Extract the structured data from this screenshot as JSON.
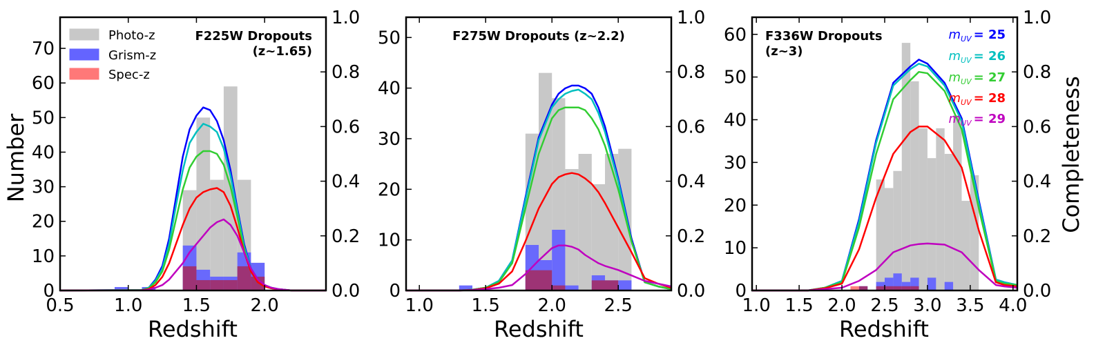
{
  "figure": {
    "left_ylabel": "Number",
    "right_ylabel": "Completeness",
    "xlabel": "Redshift"
  },
  "legend": {
    "entries": [
      {
        "label": "Photo-z",
        "color": "#c8c8c8"
      },
      {
        "label": "Grism-z",
        "color": "#6464ff"
      },
      {
        "label": "Spec-z",
        "color": "#ff7878"
      }
    ]
  },
  "mag_legend": {
    "entries": [
      {
        "var": "m",
        "sub": "UV",
        "value": "= 25",
        "color": "#0000ff"
      },
      {
        "var": "m",
        "sub": "UV",
        "value": "= 26",
        "color": "#00bfbf"
      },
      {
        "var": "m",
        "sub": "UV",
        "value": "= 27",
        "color": "#32cd32"
      },
      {
        "var": "m",
        "sub": "UV",
        "value": "= 28",
        "color": "#ff0000"
      },
      {
        "var": "m",
        "sub": "UV",
        "value": "= 29",
        "color": "#bf00bf"
      }
    ]
  },
  "colors": {
    "photo": "#c8c8c8",
    "grism": "#6464ff",
    "spec": "#ff7878",
    "overlap": "#a0306e"
  },
  "chart_data": [
    {
      "type": "bar",
      "title_lines": [
        "F225W Dropouts",
        "(z~1.65)"
      ],
      "title_align": "right",
      "xlabel": "Redshift",
      "ylabel": "Number",
      "y2label": "",
      "xlim": [
        0.5,
        2.45
      ],
      "ylim": [
        0,
        79
      ],
      "y2lim": [
        0,
        1.0
      ],
      "xticks": [
        "0.5",
        "1.0",
        "1.5",
        "2.0"
      ],
      "xtick_values": [
        0.5,
        1.0,
        1.5,
        2.0
      ],
      "yticks": [
        "0",
        "10",
        "20",
        "30",
        "40",
        "50",
        "60",
        "70"
      ],
      "ytick_values": [
        0,
        10,
        20,
        30,
        40,
        50,
        60,
        70
      ],
      "y2ticks": [
        "0.0",
        "0.2",
        "0.4",
        "0.6",
        "0.8",
        "1.0"
      ],
      "y2tick_values": [
        0,
        0.2,
        0.4,
        0.6,
        0.8,
        1.0
      ],
      "bin_width": 0.1,
      "photo_z": {
        "bin_starts": [
          1.4,
          1.5,
          1.6,
          1.7,
          1.8,
          1.9
        ],
        "counts": [
          29,
          50,
          32,
          59,
          32,
          8
        ]
      },
      "grism_z": {
        "bin_starts": [
          0.9,
          1.1,
          1.4,
          1.5,
          1.6,
          1.7,
          1.8,
          1.9
        ],
        "counts": [
          1,
          1,
          13,
          6,
          4,
          4,
          11,
          8
        ]
      },
      "spec_z": {
        "bin_starts": [
          1.4,
          1.5,
          1.6,
          1.7,
          1.8,
          1.9
        ],
        "counts": [
          7,
          3,
          3,
          3,
          7,
          4
        ]
      },
      "completeness": {
        "x": [
          0.5,
          1.1,
          1.15,
          1.2,
          1.25,
          1.3,
          1.35,
          1.4,
          1.45,
          1.5,
          1.55,
          1.6,
          1.65,
          1.7,
          1.75,
          1.8,
          1.85,
          1.9,
          1.95,
          2.0,
          2.05,
          2.1,
          2.2,
          2.45
        ],
        "series": [
          {
            "name": "m_UV = 25",
            "color": "#0000ff",
            "values": [
              0,
              0.002,
              0.01,
              0.04,
              0.09,
              0.19,
              0.34,
              0.49,
              0.59,
              0.64,
              0.67,
              0.66,
              0.62,
              0.55,
              0.44,
              0.3,
              0.17,
              0.08,
              0.04,
              0.02,
              0.01,
              0.005,
              0,
              0
            ]
          },
          {
            "name": "m_UV = 26",
            "color": "#00bfbf",
            "values": [
              0,
              0.002,
              0.01,
              0.035,
              0.08,
              0.17,
              0.31,
              0.44,
              0.54,
              0.58,
              0.61,
              0.6,
              0.58,
              0.52,
              0.42,
              0.29,
              0.16,
              0.08,
              0.04,
              0.02,
              0.01,
              0.005,
              0,
              0
            ]
          },
          {
            "name": "m_UV = 27",
            "color": "#32cd32",
            "values": [
              0,
              0.002,
              0.008,
              0.03,
              0.07,
              0.15,
              0.26,
              0.37,
              0.45,
              0.49,
              0.51,
              0.51,
              0.5,
              0.46,
              0.38,
              0.27,
              0.15,
              0.07,
              0.03,
              0.015,
              0.008,
              0.004,
              0,
              0
            ]
          },
          {
            "name": "m_UV = 28",
            "color": "#ff0000",
            "values": [
              0,
              0.001,
              0.005,
              0.02,
              0.05,
              0.1,
              0.17,
              0.24,
              0.3,
              0.34,
              0.36,
              0.37,
              0.375,
              0.36,
              0.31,
              0.23,
              0.14,
              0.07,
              0.03,
              0.015,
              0.008,
              0.004,
              0,
              0
            ]
          },
          {
            "name": "m_UV = 29",
            "color": "#bf00bf",
            "values": [
              0,
              0.001,
              0.003,
              0.01,
              0.02,
              0.04,
              0.07,
              0.1,
              0.14,
              0.17,
              0.2,
              0.23,
              0.25,
              0.26,
              0.24,
              0.2,
              0.14,
              0.08,
              0.04,
              0.02,
              0.01,
              0.005,
              0,
              0
            ]
          }
        ]
      }
    },
    {
      "type": "bar",
      "title_lines": [
        "F275W Dropouts (z~2.2)"
      ],
      "title_align": "center",
      "xlabel": "Redshift",
      "ylabel": "",
      "y2label": "",
      "xlim": [
        0.9,
        2.9
      ],
      "ylim": [
        0,
        54
      ],
      "y2lim": [
        0,
        1.0
      ],
      "xticks": [
        "1.0",
        "1.5",
        "2.0",
        "2.5"
      ],
      "xtick_values": [
        1.0,
        1.5,
        2.0,
        2.5
      ],
      "yticks": [
        "0",
        "10",
        "20",
        "30",
        "40",
        "50"
      ],
      "ytick_values": [
        0,
        10,
        20,
        30,
        40,
        50
      ],
      "y2ticks": [
        "0.0",
        "0.2",
        "0.4",
        "0.6",
        "0.8",
        "1.0"
      ],
      "y2tick_values": [
        0,
        0.2,
        0.4,
        0.6,
        0.8,
        1.0
      ],
      "bin_width": 0.1,
      "photo_z": {
        "bin_starts": [
          1.8,
          1.9,
          2.0,
          2.1,
          2.2,
          2.3,
          2.4,
          2.5
        ],
        "counts": [
          31,
          43,
          38,
          24,
          27,
          21,
          27,
          28
        ]
      },
      "grism_z": {
        "bin_starts": [
          1.3,
          1.8,
          1.9,
          2.0,
          2.1,
          2.3,
          2.4,
          2.5
        ],
        "counts": [
          1,
          9,
          6,
          12,
          1,
          3,
          2,
          2
        ]
      },
      "spec_z": {
        "bin_starts": [
          1.8,
          1.9,
          2.0,
          2.3,
          2.4
        ],
        "counts": [
          4,
          4,
          1,
          2,
          2
        ]
      },
      "completeness": {
        "x": [
          0.9,
          1.3,
          1.4,
          1.5,
          1.6,
          1.7,
          1.8,
          1.9,
          2.0,
          2.05,
          2.1,
          2.15,
          2.2,
          2.25,
          2.3,
          2.35,
          2.4,
          2.5,
          2.6,
          2.7,
          2.8,
          2.9
        ],
        "series": [
          {
            "name": "m_UV = 25",
            "color": "#0000ff",
            "values": [
              0,
              0,
              0.003,
              0.01,
              0.035,
              0.11,
              0.34,
              0.56,
              0.68,
              0.72,
              0.74,
              0.75,
              0.75,
              0.74,
              0.72,
              0.67,
              0.6,
              0.41,
              0.19,
              0.03,
              0.015,
              0.005
            ]
          },
          {
            "name": "m_UV = 26",
            "color": "#00bfbf",
            "values": [
              0,
              0,
              0.003,
              0.01,
              0.035,
              0.11,
              0.33,
              0.55,
              0.67,
              0.7,
              0.72,
              0.73,
              0.735,
              0.72,
              0.7,
              0.65,
              0.58,
              0.4,
              0.18,
              0.03,
              0.015,
              0.005
            ]
          },
          {
            "name": "m_UV = 27",
            "color": "#32cd32",
            "values": [
              0,
              0,
              0.003,
              0.01,
              0.03,
              0.1,
              0.3,
              0.5,
              0.63,
              0.66,
              0.67,
              0.67,
              0.67,
              0.66,
              0.63,
              0.59,
              0.53,
              0.37,
              0.18,
              0.03,
              0.015,
              0.005
            ]
          },
          {
            "name": "m_UV = 28",
            "color": "#ff0000",
            "values": [
              0,
              0,
              0.002,
              0.008,
              0.025,
              0.07,
              0.18,
              0.3,
              0.39,
              0.415,
              0.425,
              0.43,
              0.425,
              0.41,
              0.39,
              0.36,
              0.32,
              0.23,
              0.14,
              0.045,
              0.025,
              0.01
            ]
          },
          {
            "name": "m_UV = 29",
            "color": "#bf00bf",
            "values": [
              0,
              0,
              0.002,
              0.005,
              0.01,
              0.02,
              0.06,
              0.11,
              0.155,
              0.165,
              0.165,
              0.16,
              0.15,
              0.13,
              0.115,
              0.1,
              0.09,
              0.075,
              0.055,
              0.035,
              0.025,
              0.015
            ]
          }
        ]
      }
    },
    {
      "type": "bar",
      "title_lines": [
        "F336W Dropouts",
        "(z~3)"
      ],
      "title_align": "left",
      "xlabel": "Redshift",
      "ylabel": "",
      "y2label": "Completeness",
      "xlim": [
        0.95,
        4.05
      ],
      "ylim": [
        0,
        64
      ],
      "y2lim": [
        0,
        1.0
      ],
      "xticks": [
        "1.0",
        "1.5",
        "2.0",
        "2.5",
        "3.0",
        "3.5",
        "4.0"
      ],
      "xtick_values": [
        1.0,
        1.5,
        2.0,
        2.5,
        3.0,
        3.5,
        4.0
      ],
      "yticks": [
        "0",
        "10",
        "20",
        "30",
        "40",
        "50",
        "60"
      ],
      "ytick_values": [
        0,
        10,
        20,
        30,
        40,
        50,
        60
      ],
      "y2ticks": [
        "0.0",
        "0.2",
        "0.4",
        "0.6",
        "0.8",
        "1.0"
      ],
      "y2tick_values": [
        0,
        0.2,
        0.4,
        0.6,
        0.8,
        1.0
      ],
      "bin_width": 0.1,
      "photo_z": {
        "bin_starts": [
          2.4,
          2.5,
          2.6,
          2.7,
          2.8,
          2.9,
          3.0,
          3.1,
          3.2,
          3.3,
          3.4,
          3.5
        ],
        "counts": [
          26,
          24,
          28,
          58,
          49,
          38,
          31,
          38,
          32,
          41,
          21,
          27
        ]
      },
      "grism_z": {
        "bin_starts": [
          2.2,
          2.4,
          2.5,
          2.6,
          2.7,
          2.8,
          3.0,
          3.2
        ],
        "counts": [
          1,
          2,
          3,
          4,
          2,
          3,
          3,
          2
        ]
      },
      "spec_z": {
        "bin_starts": [
          2.1,
          2.2,
          2.4,
          2.5,
          2.6,
          2.7,
          2.8
        ],
        "counts": [
          1,
          1,
          1,
          1,
          1,
          1,
          1
        ]
      },
      "completeness": {
        "x": [
          0.95,
          1.6,
          1.8,
          2.0,
          2.2,
          2.4,
          2.6,
          2.8,
          2.9,
          3.0,
          3.2,
          3.4,
          3.6,
          3.8,
          3.9,
          4.05
        ],
        "series": [
          {
            "name": "m_UV = 25",
            "color": "#0000ff",
            "values": [
              0,
              0,
              0.01,
              0.035,
              0.26,
              0.55,
              0.76,
              0.82,
              0.845,
              0.83,
              0.76,
              0.63,
              0.33,
              0.04,
              0.03,
              0.02
            ]
          },
          {
            "name": "m_UV = 26",
            "color": "#00bfbf",
            "values": [
              0,
              0,
              0.01,
              0.035,
              0.25,
              0.54,
              0.75,
              0.81,
              0.83,
              0.82,
              0.75,
              0.62,
              0.32,
              0.04,
              0.03,
              0.02
            ]
          },
          {
            "name": "m_UV = 27",
            "color": "#32cd32",
            "values": [
              0,
              0,
              0.01,
              0.03,
              0.23,
              0.5,
              0.7,
              0.77,
              0.8,
              0.795,
              0.73,
              0.59,
              0.3,
              0.035,
              0.025,
              0.02
            ]
          },
          {
            "name": "m_UV = 28",
            "color": "#ff0000",
            "values": [
              0,
              0,
              0.008,
              0.025,
              0.15,
              0.34,
              0.5,
              0.58,
              0.6,
              0.6,
              0.55,
              0.45,
              0.22,
              0.03,
              0.02,
              0.015
            ]
          },
          {
            "name": "m_UV = 29",
            "color": "#bf00bf",
            "values": [
              0,
              0,
              0.005,
              0.01,
              0.035,
              0.075,
              0.14,
              0.165,
              0.17,
              0.172,
              0.168,
              0.14,
              0.075,
              0.02,
              0.015,
              0.01
            ]
          }
        ]
      }
    }
  ]
}
